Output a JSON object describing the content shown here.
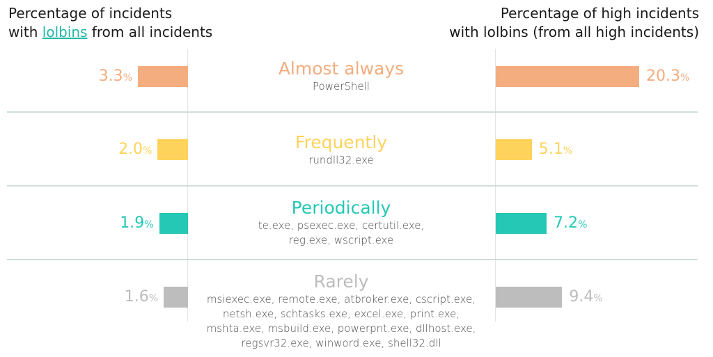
{
  "header": {
    "left": {
      "line1": "Percentage of incidents",
      "line2_prefix": "with ",
      "line2_link": "lolbins",
      "line2_suffix": " from all incidents"
    },
    "right": {
      "line1": "Percentage of high incidents",
      "line2": "with lolbins (from all high incidents)"
    }
  },
  "colors": {
    "almost_always": "#f3ad7f",
    "frequently": "#fdd35c",
    "periodically": "#24c8b4",
    "rarely": "#bdbdbd",
    "link": "#23b8a8"
  },
  "chart_data": {
    "type": "bar",
    "orientation": "horizontal-diverging",
    "categories": [
      "Almost always",
      "Frequently",
      "Periodically",
      "Rarely"
    ],
    "series": [
      {
        "name": "Percentage of incidents with lolbins from all incidents",
        "side": "left",
        "values": [
          3.3,
          2.0,
          1.9,
          1.6
        ]
      },
      {
        "name": "Percentage of high incidents with lolbins (from all high incidents)",
        "side": "right",
        "values": [
          20.3,
          5.1,
          7.2,
          9.4
        ]
      }
    ],
    "value_labels_left": [
      "3.3",
      "2.0",
      "1.9",
      "1.6"
    ],
    "value_labels_right": [
      "20.3",
      "5.1",
      "7.2",
      "9.4"
    ],
    "unit": "%",
    "tools": [
      [
        "PowerShell"
      ],
      [
        "rundll32.exe"
      ],
      [
        "te.exe, psexec.exe, certutil.exe,",
        "reg.exe, wscript.exe"
      ],
      [
        "msiexec.exe, remote.exe, atbroker.exe, cscript.exe,",
        "netsh.exe, schtasks.exe, excel.exe, print.exe,",
        "mshta.exe, msbuild.exe, powerpnt.exe, dllhost.exe,",
        "regsvr32.exe, winword.exe, shell32.dll"
      ]
    ]
  }
}
